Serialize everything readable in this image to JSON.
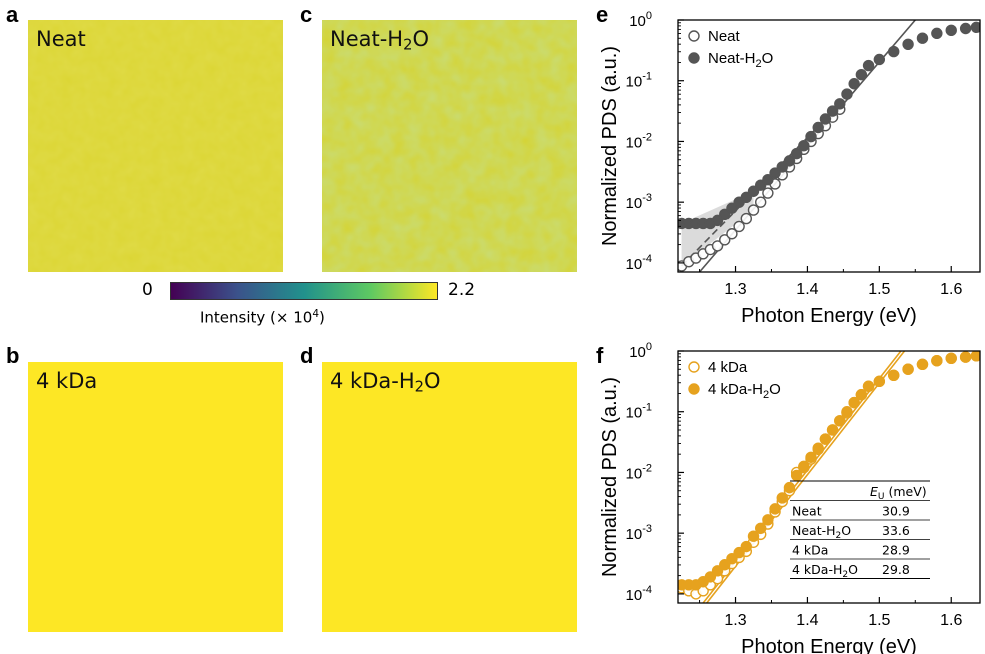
{
  "panels": {
    "a": {
      "letter": "a",
      "label": "Neat"
    },
    "b": {
      "letter": "b",
      "label": "4 kDa"
    },
    "c": {
      "letter": "c",
      "label_main": "Neat-H",
      "label_sub": "2",
      "label_end": "O"
    },
    "d": {
      "letter": "d",
      "label_main": "4 kDa-H",
      "label_sub": "2",
      "label_end": "O"
    },
    "e": {
      "letter": "e"
    },
    "f": {
      "letter": "f"
    }
  },
  "colorbar": {
    "min_label": "0",
    "max_label": "2.2",
    "label_main": "Intensity (× 10",
    "label_sup": "4",
    "label_end": ")",
    "colors": [
      "#440154",
      "#3b528b",
      "#21918c",
      "#5ec962",
      "#fde725"
    ]
  },
  "colors": {
    "neat_map": "#dcd635",
    "neat_h2o_map": "#c6cf40",
    "kda_map": "#fde725",
    "gray_series": "#555555",
    "orange_series": "#e6a21e"
  },
  "chart_data": [
    {
      "type": "scatter",
      "panel": "e",
      "xlabel": "Photon Energy (eV)",
      "ylabel": "Normalized PDS (a.u.)",
      "xlim": [
        1.22,
        1.64
      ],
      "ylim_log10": [
        -4.15,
        0
      ],
      "yscale": "log",
      "x_ticks": [
        "1.3",
        "1.4",
        "1.5",
        "1.6"
      ],
      "x_tick_values": [
        1.3,
        1.4,
        1.5,
        1.6
      ],
      "y_ticks_exp": [
        "-4",
        "-3",
        "-2",
        "-1",
        "0"
      ],
      "y_tick_base": "10",
      "legend_position": "top-left",
      "series": [
        {
          "name": "Neat",
          "marker": "open-circle",
          "x": [
            1.225,
            1.235,
            1.245,
            1.255,
            1.265,
            1.275,
            1.285,
            1.295,
            1.305,
            1.315,
            1.325,
            1.335,
            1.345,
            1.355,
            1.365,
            1.375,
            1.385,
            1.395,
            1.405,
            1.415,
            1.425,
            1.435,
            1.445
          ],
          "log10_y": [
            -4.05,
            -3.98,
            -3.92,
            -3.85,
            -3.78,
            -3.72,
            -3.62,
            -3.52,
            -3.4,
            -3.27,
            -3.13,
            -3.0,
            -2.85,
            -2.7,
            -2.55,
            -2.42,
            -2.28,
            -2.13,
            -2.0,
            -1.87,
            -1.74,
            -1.6,
            -1.47
          ]
        },
        {
          "name": "Neat-H2O",
          "name_main": "Neat-H",
          "name_sub": "2",
          "name_end": "O",
          "marker": "filled-circle",
          "x": [
            1.225,
            1.235,
            1.245,
            1.255,
            1.265,
            1.275,
            1.285,
            1.295,
            1.305,
            1.315,
            1.325,
            1.335,
            1.345,
            1.355,
            1.365,
            1.375,
            1.385,
            1.395,
            1.405,
            1.415,
            1.425,
            1.435,
            1.445,
            1.455,
            1.465,
            1.475,
            1.485,
            1.5,
            1.52,
            1.54,
            1.56,
            1.58,
            1.6,
            1.62,
            1.635
          ],
          "log10_y": [
            -3.35,
            -3.35,
            -3.35,
            -3.35,
            -3.35,
            -3.3,
            -3.2,
            -3.1,
            -3.0,
            -2.92,
            -2.82,
            -2.72,
            -2.63,
            -2.52,
            -2.42,
            -2.32,
            -2.2,
            -2.07,
            -1.92,
            -1.77,
            -1.63,
            -1.5,
            -1.38,
            -1.22,
            -1.05,
            -0.9,
            -0.75,
            -0.65,
            -0.52,
            -0.4,
            -0.3,
            -0.22,
            -0.17,
            -0.14,
            -0.12
          ]
        }
      ],
      "fit_lines": [
        {
          "style": "solid",
          "x": [
            1.25,
            1.55
          ],
          "log10_y": [
            -4.15,
            0
          ]
        },
        {
          "style": "dashed",
          "x": [
            1.225,
            1.44
          ],
          "log10_y": [
            -4.05,
            -1.45
          ]
        }
      ],
      "shaded_region": {
        "x": [
          1.225,
          1.325
        ],
        "lower_log10": [
          -4.05,
          -3.13
        ],
        "upper_log10": [
          -3.35,
          -2.82
        ]
      }
    },
    {
      "type": "scatter",
      "panel": "f",
      "xlabel": "Photon Energy (eV)",
      "ylabel": "Normalized PDS (a.u.)",
      "xlim": [
        1.22,
        1.64
      ],
      "ylim_log10": [
        -4.15,
        0
      ],
      "yscale": "log",
      "x_ticks": [
        "1.3",
        "1.4",
        "1.5",
        "1.6"
      ],
      "x_tick_values": [
        1.3,
        1.4,
        1.5,
        1.6
      ],
      "y_ticks_exp": [
        "-4",
        "-3",
        "-2",
        "-1",
        "0"
      ],
      "y_tick_base": "10",
      "legend_position": "top-left",
      "series": [
        {
          "name": "4 kDa",
          "marker": "open-circle",
          "x": [
            1.225,
            1.235,
            1.245,
            1.255,
            1.265,
            1.275,
            1.285,
            1.295,
            1.305,
            1.315,
            1.325,
            1.335,
            1.345,
            1.355,
            1.365,
            1.375,
            1.385,
            1.395,
            1.405,
            1.415,
            1.425,
            1.435,
            1.445,
            1.455,
            1.465,
            1.475,
            1.485,
            1.5,
            1.52,
            1.54,
            1.56,
            1.58,
            1.6,
            1.62,
            1.635
          ],
          "log10_y": [
            -3.9,
            -3.95,
            -4.0,
            -3.95,
            -3.85,
            -3.75,
            -3.62,
            -3.5,
            -3.4,
            -3.3,
            -3.15,
            -3.02,
            -2.85,
            -2.65,
            -2.48,
            -2.3,
            -2.0,
            -1.92,
            -1.78,
            -1.62,
            -1.45,
            -1.3,
            -1.15,
            -1.02,
            -0.85,
            -0.72,
            -0.58,
            -0.5,
            -0.4,
            -0.3,
            -0.22,
            -0.16,
            -0.12,
            -0.1,
            -0.08
          ]
        },
        {
          "name": "4 kDa-H2O",
          "name_main": "4 kDa-H",
          "name_sub": "2",
          "name_end": "O",
          "marker": "filled-circle",
          "x": [
            1.225,
            1.235,
            1.245,
            1.255,
            1.265,
            1.275,
            1.285,
            1.295,
            1.305,
            1.315,
            1.325,
            1.335,
            1.345,
            1.355,
            1.365,
            1.375,
            1.385,
            1.395,
            1.405,
            1.415,
            1.425,
            1.435,
            1.445,
            1.455,
            1.465,
            1.475,
            1.485,
            1.5,
            1.52,
            1.54,
            1.56,
            1.58,
            1.6,
            1.62,
            1.635
          ],
          "log10_y": [
            -3.85,
            -3.85,
            -3.85,
            -3.8,
            -3.72,
            -3.62,
            -3.52,
            -3.42,
            -3.32,
            -3.22,
            -3.05,
            -2.92,
            -2.78,
            -2.6,
            -2.42,
            -2.25,
            -2.05,
            -1.9,
            -1.75,
            -1.6,
            -1.45,
            -1.3,
            -1.15,
            -1.0,
            -0.85,
            -0.72,
            -0.58,
            -0.5,
            -0.4,
            -0.3,
            -0.22,
            -0.16,
            -0.12,
            -0.1,
            -0.08
          ]
        }
      ],
      "fit_lines": [
        {
          "style": "solid",
          "x": [
            1.255,
            1.53
          ],
          "log10_y": [
            -4.15,
            0
          ]
        },
        {
          "style": "solid",
          "x": [
            1.26,
            1.535
          ],
          "log10_y": [
            -4.15,
            0
          ]
        }
      ],
      "table": {
        "header": [
          "",
          "E",
          "U",
          " (meV)"
        ],
        "rows": [
          {
            "name": "Neat",
            "value": "30.9"
          },
          {
            "name_main": "Neat-H",
            "name_sub": "2",
            "name_end": "O",
            "value": "33.6"
          },
          {
            "name": "4 kDa",
            "value": "28.9"
          },
          {
            "name_main": "4 kDa-H",
            "name_sub": "2",
            "name_end": "O",
            "value": "29.8"
          }
        ]
      }
    }
  ]
}
